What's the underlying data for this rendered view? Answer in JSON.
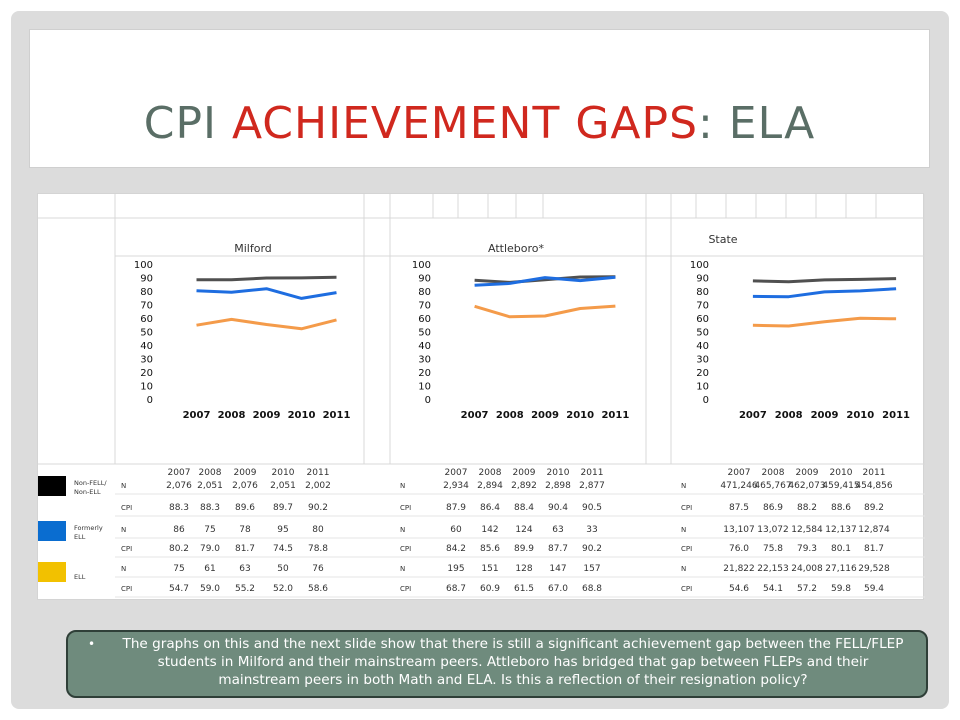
{
  "title": {
    "part1": "CPI ",
    "part2": "ACHIEVEMENT GAPS",
    "part3": ":  ELA"
  },
  "colors": {
    "nonfell": "#505050",
    "formerly": "#1e6de0",
    "ell": "#f49b4a",
    "legend_nonfell": "#000000",
    "legend_formerly": "#0a6dd0",
    "legend_ell": "#f2c100"
  },
  "legend": [
    {
      "label": "Non-FELL/ Non-ELL",
      "color_key": "legend_nonfell"
    },
    {
      "label": "Formerly ELL",
      "color_key": "legend_formerly"
    },
    {
      "label": "ELL",
      "color_key": "legend_ell"
    }
  ],
  "chart_data": [
    {
      "type": "line",
      "title": "Milford",
      "categories": [
        "2007",
        "2008",
        "2009",
        "2010",
        "2011"
      ],
      "ylim": [
        0,
        100
      ],
      "yticks": [
        0,
        10,
        20,
        30,
        40,
        50,
        60,
        70,
        80,
        90,
        100
      ],
      "series": [
        {
          "name": "Non-FELL/ Non-ELL",
          "values": [
            88.3,
            88.3,
            89.6,
            89.7,
            90.2
          ]
        },
        {
          "name": "Formerly ELL",
          "values": [
            80.2,
            79.0,
            81.7,
            74.5,
            78.8
          ]
        },
        {
          "name": "ELL",
          "values": [
            54.7,
            59.0,
            55.2,
            52.0,
            58.6
          ]
        }
      ]
    },
    {
      "type": "line",
      "title": "Attleboro*",
      "categories": [
        "2007",
        "2008",
        "2009",
        "2010",
        "2011"
      ],
      "ylim": [
        0,
        100
      ],
      "yticks": [
        0,
        10,
        20,
        30,
        40,
        50,
        60,
        70,
        80,
        90,
        100
      ],
      "series": [
        {
          "name": "Non-FELL/ Non-ELL",
          "values": [
            87.9,
            86.4,
            88.4,
            90.4,
            90.5
          ]
        },
        {
          "name": "Formerly ELL",
          "values": [
            84.2,
            85.6,
            89.9,
            87.7,
            90.2
          ]
        },
        {
          "name": "ELL",
          "values": [
            68.7,
            60.9,
            61.5,
            67.0,
            68.8
          ]
        }
      ]
    },
    {
      "type": "line",
      "title": "State",
      "categories": [
        "2007",
        "2008",
        "2009",
        "2010",
        "2011"
      ],
      "ylim": [
        0,
        100
      ],
      "yticks": [
        0,
        10,
        20,
        30,
        40,
        50,
        60,
        70,
        80,
        90,
        100
      ],
      "series": [
        {
          "name": "Non-FELL/ Non-ELL",
          "values": [
            87.5,
            86.9,
            88.2,
            88.6,
            89.2
          ]
        },
        {
          "name": "Formerly ELL",
          "values": [
            76.0,
            75.8,
            79.3,
            80.1,
            81.7
          ]
        },
        {
          "name": "ELL",
          "values": [
            54.6,
            54.1,
            57.2,
            59.8,
            59.4
          ]
        }
      ]
    }
  ],
  "tables": [
    {
      "years": [
        "2007",
        "2008",
        "2009",
        "2010",
        "2011"
      ],
      "rows": [
        {
          "label": "N",
          "values": [
            "2,076",
            "2,051",
            "2,076",
            "2,051",
            "2,002"
          ]
        },
        {
          "label": "CPI",
          "values": [
            "88.3",
            "88.3",
            "89.6",
            "89.7",
            "90.2"
          ]
        },
        {
          "label": "N",
          "values": [
            "86",
            "75",
            "78",
            "95",
            "80"
          ]
        },
        {
          "label": "CPI",
          "values": [
            "80.2",
            "79.0",
            "81.7",
            "74.5",
            "78.8"
          ]
        },
        {
          "label": "N",
          "values": [
            "75",
            "61",
            "63",
            "50",
            "76"
          ]
        },
        {
          "label": "CPI",
          "values": [
            "54.7",
            "59.0",
            "55.2",
            "52.0",
            "58.6"
          ]
        }
      ]
    },
    {
      "years": [
        "2007",
        "2008",
        "2009",
        "2010",
        "2011"
      ],
      "rows": [
        {
          "label": "N",
          "values": [
            "2,934",
            "2,894",
            "2,892",
            "2,898",
            "2,877"
          ]
        },
        {
          "label": "CPI",
          "values": [
            "87.9",
            "86.4",
            "88.4",
            "90.4",
            "90.5"
          ]
        },
        {
          "label": "N",
          "values": [
            "60",
            "142",
            "124",
            "63",
            "33"
          ]
        },
        {
          "label": "CPI",
          "values": [
            "84.2",
            "85.6",
            "89.9",
            "87.7",
            "90.2"
          ]
        },
        {
          "label": "N",
          "values": [
            "195",
            "151",
            "128",
            "147",
            "157"
          ]
        },
        {
          "label": "CPI",
          "values": [
            "68.7",
            "60.9",
            "61.5",
            "67.0",
            "68.8"
          ]
        }
      ]
    },
    {
      "years": [
        "2007",
        "2008",
        "2009",
        "2010",
        "2011"
      ],
      "rows": [
        {
          "label": "N",
          "values": [
            "471,246",
            "465,767",
            "462,073",
            "459,415",
            "454,856"
          ]
        },
        {
          "label": "CPI",
          "values": [
            "87.5",
            "86.9",
            "88.2",
            "88.6",
            "89.2"
          ]
        },
        {
          "label": "N",
          "values": [
            "13,107",
            "13,072",
            "12,584",
            "12,137",
            "12,874"
          ]
        },
        {
          "label": "CPI",
          "values": [
            "76.0",
            "75.8",
            "79.3",
            "80.1",
            "81.7"
          ]
        },
        {
          "label": "N",
          "values": [
            "21,822",
            "22,153",
            "24,008",
            "27,116",
            "29,528"
          ]
        },
        {
          "label": "CPI",
          "values": [
            "54.6",
            "54.1",
            "57.2",
            "59.8",
            "59.4"
          ]
        }
      ]
    }
  ],
  "note": {
    "bullet": "•",
    "text": "The graphs on this and the next slide  show that there is still a significant achievement gap between the FELL/FLEP students in Milford and their mainstream peers. Attleboro has bridged that gap between FLEPs and their mainstream peers in both Math and ELA.  Is this a reflection of their resignation policy?"
  }
}
